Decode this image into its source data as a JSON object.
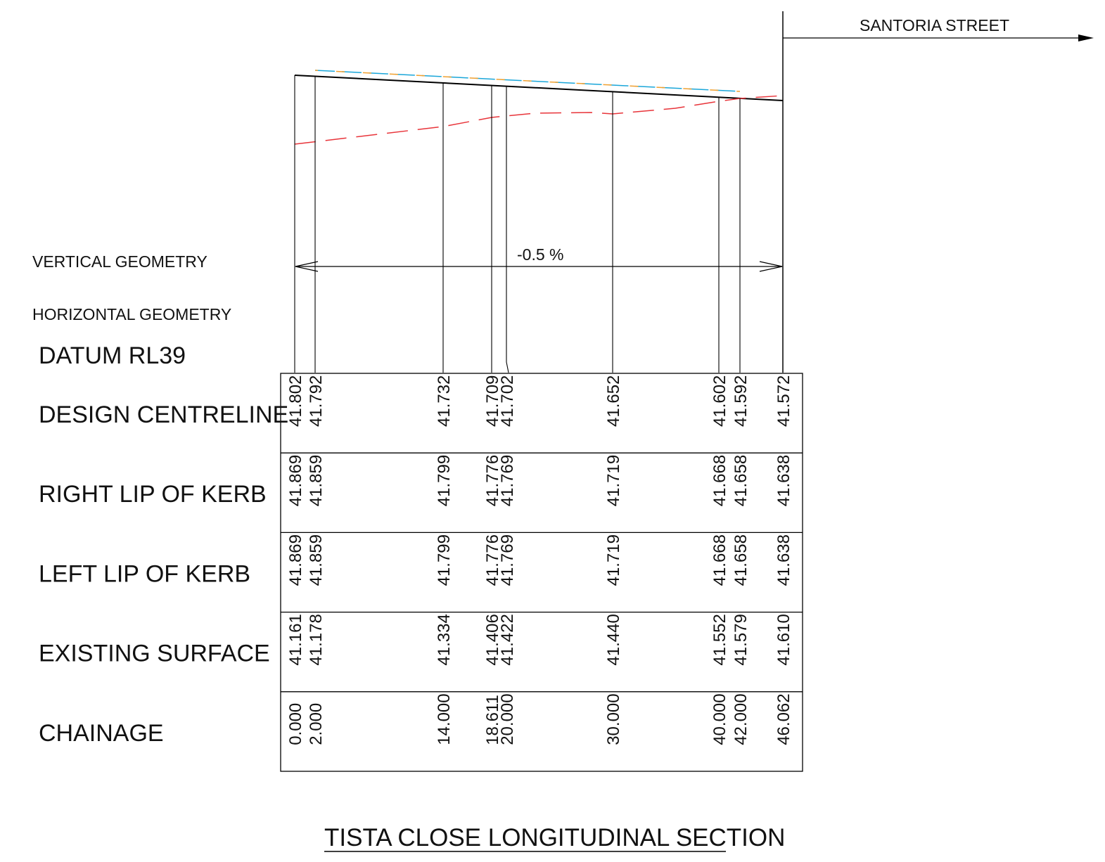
{
  "drawing": {
    "title": "TISTA CLOSE LONGITUDINAL SECTION",
    "street_label": "SANTORIA STREET",
    "grade_label": "-0.5 %",
    "labels": {
      "vertical_geometry": "VERTICAL GEOMETRY",
      "horizontal_geometry": "HORIZONTAL GEOMETRY",
      "datum": "DATUM RL39"
    },
    "colors": {
      "line": "#000000",
      "existing_surface": "#e8343a",
      "kerb_right": "#1aa6d9",
      "kerb_left": "#f0a030"
    }
  },
  "table": {
    "rows": [
      {
        "label": "DESIGN CENTRELINE",
        "values": [
          "41.802",
          "41.792",
          "41.732",
          "41.709",
          "41.702",
          "41.652",
          "41.602",
          "41.592",
          "41.572"
        ]
      },
      {
        "label": "RIGHT LIP OF KERB",
        "values": [
          "41.869",
          "41.859",
          "41.799",
          "41.776",
          "41.769",
          "41.719",
          "41.668",
          "41.658",
          "41.638"
        ]
      },
      {
        "label": "LEFT LIP OF KERB",
        "values": [
          "41.869",
          "41.859",
          "41.799",
          "41.776",
          "41.769",
          "41.719",
          "41.668",
          "41.658",
          "41.638"
        ]
      },
      {
        "label": "EXISTING SURFACE",
        "values": [
          "41.161",
          "41.178",
          "41.334",
          "41.406",
          "41.422",
          "41.440",
          "41.552",
          "41.579",
          "41.610"
        ]
      },
      {
        "label": "CHAINAGE",
        "values": [
          "0.000",
          "2.000",
          "14.000",
          "18.611",
          "20.000",
          "30.000",
          "40.000",
          "42.000",
          "46.062"
        ]
      }
    ]
  }
}
